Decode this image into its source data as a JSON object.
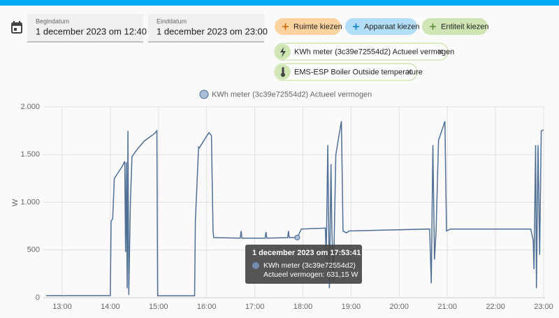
{
  "date_range": {
    "start_label": "Begindatum",
    "start_value": "1 december 2023 om 12:40",
    "end_label": "Einddatum",
    "end_value": "1 december 2023 om 23:00"
  },
  "buttons": [
    "Ruimte kiezen",
    "Apparaat kiezen",
    "Entiteit kiezen"
  ],
  "chips": [
    "KWh meter (3c39e72554d2) Actueel vermogen",
    "EMS-ESP Boiler Outside temperature"
  ],
  "tooltip": {
    "title": "1 december 2023 om 17:53:41",
    "line1": "KWh meter (3c39e72554d2)",
    "line2": "Actueel vermogen: 631,15 W"
  },
  "chart_data": {
    "type": "line",
    "y_label": "W",
    "grid": true,
    "x": [
      "12:40",
      "14:00",
      "14:01",
      "14:03",
      "14:05",
      "14:15",
      "14:18",
      "14:19",
      "14:20",
      "14:21",
      "14:22",
      "14:23",
      "14:25",
      "14:27",
      "14:33",
      "14:42",
      "14:55",
      "14:58",
      "14:59",
      "15:45",
      "15:46",
      "15:50",
      "15:51",
      "15:59",
      "16:03",
      "16:06",
      "16:08",
      "16:09",
      "16:42",
      "16:43",
      "16:44",
      "17:13",
      "17:14",
      "17:15",
      "17:41",
      "17:42",
      "17:43",
      "17:53",
      "17:57",
      "17:58",
      "18:28",
      "18:29",
      "18:31",
      "18:33",
      "18:35",
      "18:36",
      "18:38",
      "18:41",
      "18:44",
      "18:48",
      "18:50",
      "18:54",
      "18:58",
      "20:38",
      "20:40",
      "20:42",
      "20:44",
      "20:46",
      "20:49",
      "20:53",
      "20:57",
      "20:59",
      "21:04",
      "22:44",
      "22:47",
      "22:48",
      "22:50",
      "22:51",
      "22:53",
      "22:55",
      "22:57",
      "23:00"
    ],
    "series": [
      {
        "name": "KWh meter (3c39e72554d2) Actueel vermogen",
        "color": "#4f6f94",
        "values": [
          22,
          22,
          800,
          830,
          1250,
          1380,
          1430,
          480,
          1420,
          100,
          1750,
          30,
          1000,
          1480,
          1550,
          1640,
          1720,
          1750,
          20,
          20,
          800,
          1580,
          1570,
          1680,
          1730,
          1700,
          700,
          630,
          625,
          700,
          625,
          625,
          690,
          625,
          630,
          700,
          630,
          631.15,
          700,
          720,
          730,
          400,
          1600,
          100,
          1400,
          750,
          170,
          1500,
          1650,
          1850,
          700,
          680,
          700,
          720,
          150,
          1600,
          400,
          700,
          1650,
          1750,
          1850,
          700,
          720,
          720,
          600,
          300,
          1600,
          100,
          1600,
          450,
          1750,
          1760
        ]
      }
    ],
    "xlim": [
      "12:40",
      "23:00"
    ],
    "xticks": [
      "13:00",
      "14:00",
      "15:00",
      "16:00",
      "17:00",
      "18:00",
      "19:00",
      "20:00",
      "21:00",
      "22:00",
      "23:00"
    ],
    "ylim": [
      0,
      2000
    ],
    "yticks": [
      0,
      500,
      {
        "value": 1000,
        "label": "1.000"
      },
      {
        "value": 1500,
        "label": "1.500"
      },
      {
        "value": 2000,
        "label": "2.000"
      }
    ]
  }
}
